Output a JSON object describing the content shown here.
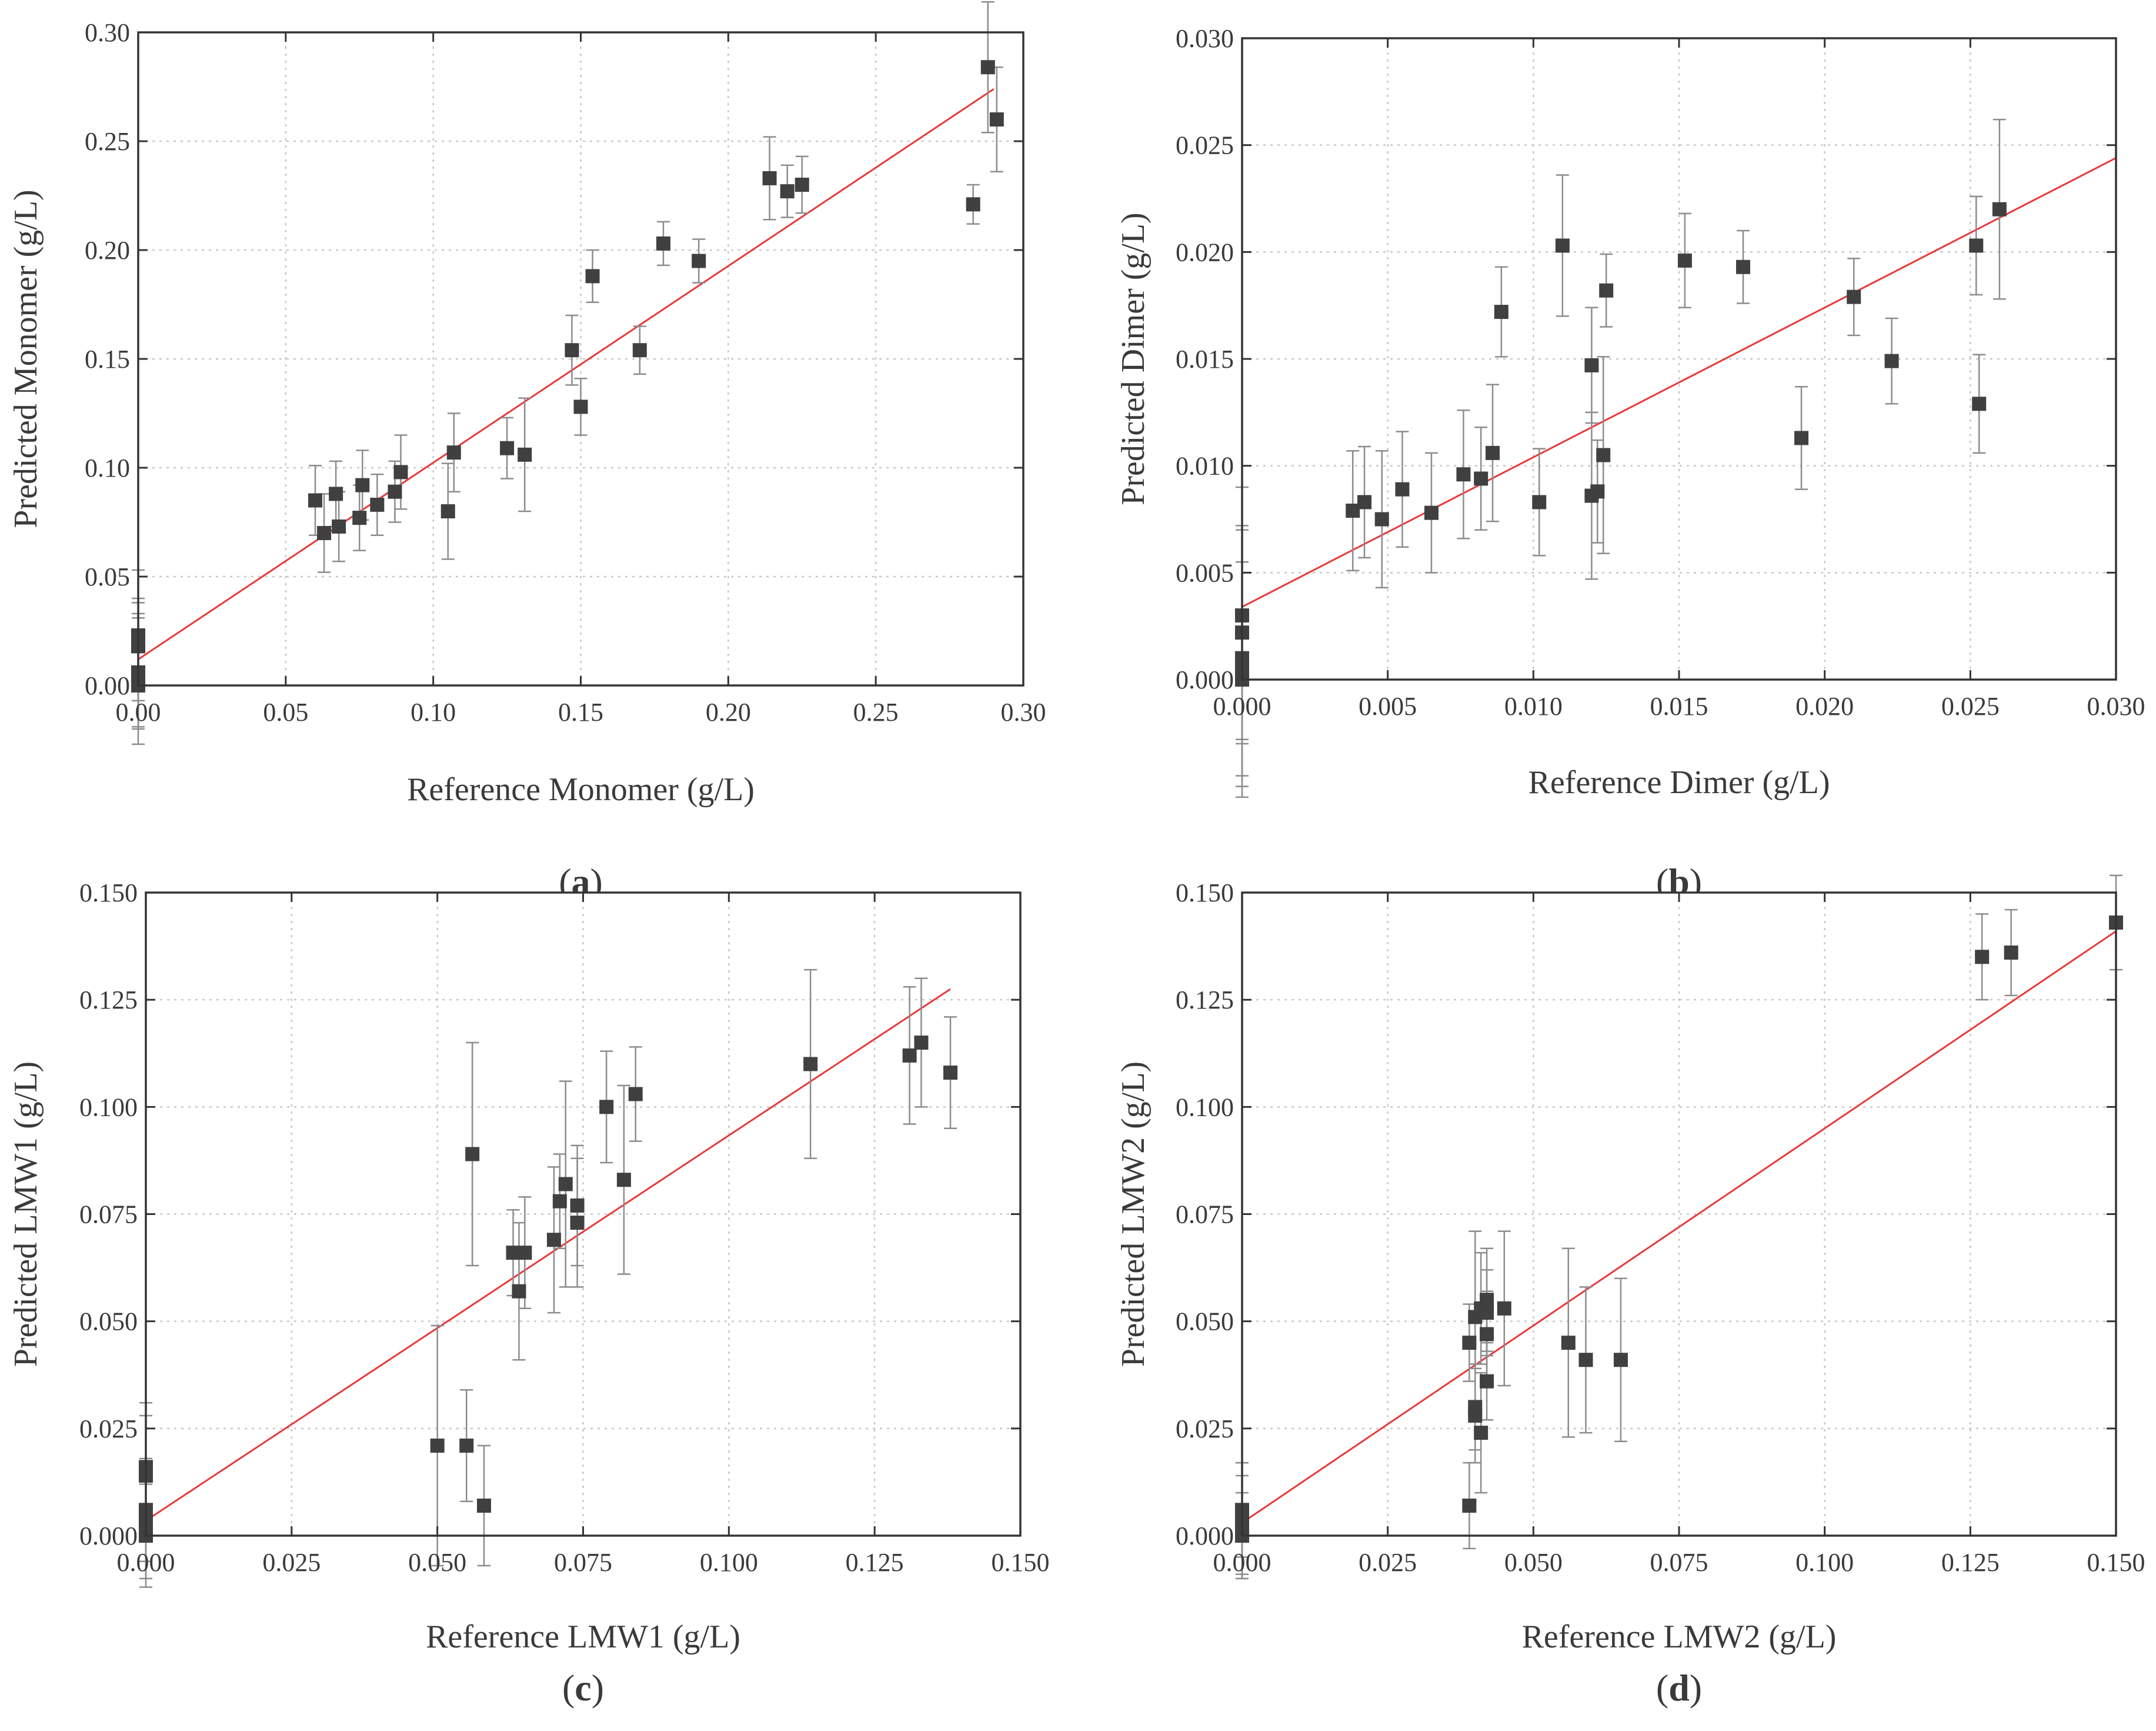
{
  "figure": {
    "panels": [
      "a",
      "b",
      "c",
      "d"
    ]
  },
  "chart_data": [
    {
      "id": "a",
      "type": "scatter",
      "caption_letter": "a",
      "xlabel": "Reference Monomer (g/L)",
      "ylabel": "Predicted Monomer (g/L)",
      "xlim": [
        0,
        0.3
      ],
      "ylim": [
        0,
        0.3
      ],
      "xticks": [
        0,
        0.05,
        0.1,
        0.15,
        0.2,
        0.25,
        0.3
      ],
      "xtick_labels": [
        "0.00",
        "0.05",
        "0.10",
        "0.15",
        "0.20",
        "0.25",
        "0.30"
      ],
      "yticks": [
        0,
        0.05,
        0.1,
        0.15,
        0.2,
        0.25,
        0.3
      ],
      "ytick_labels": [
        "0.00",
        "0.05",
        "0.10",
        "0.15",
        "0.20",
        "0.25",
        "0.30"
      ],
      "fit_line": [
        [
          0,
          0.012
        ],
        [
          0.29,
          0.274
        ]
      ],
      "points": [
        {
          "x": 0,
          "y": 0.0,
          "err": 0.02
        },
        {
          "x": 0,
          "y": 0.003,
          "err": 0.03
        },
        {
          "x": 0,
          "y": 0.006,
          "err": 0.025
        },
        {
          "x": 0,
          "y": 0.018,
          "err": 0.02
        },
        {
          "x": 0,
          "y": 0.02,
          "err": 0.02
        },
        {
          "x": 0,
          "y": 0.023,
          "err": 0.03
        },
        {
          "x": 0.06,
          "y": 0.085,
          "err": 0.016
        },
        {
          "x": 0.063,
          "y": 0.07,
          "err": 0.018
        },
        {
          "x": 0.067,
          "y": 0.088,
          "err": 0.015
        },
        {
          "x": 0.068,
          "y": 0.073,
          "err": 0.016
        },
        {
          "x": 0.075,
          "y": 0.077,
          "err": 0.015
        },
        {
          "x": 0.076,
          "y": 0.092,
          "err": 0.016
        },
        {
          "x": 0.081,
          "y": 0.083,
          "err": 0.014
        },
        {
          "x": 0.087,
          "y": 0.089,
          "err": 0.014
        },
        {
          "x": 0.089,
          "y": 0.098,
          "err": 0.017
        },
        {
          "x": 0.105,
          "y": 0.08,
          "err": 0.022
        },
        {
          "x": 0.107,
          "y": 0.107,
          "err": 0.018
        },
        {
          "x": 0.125,
          "y": 0.109,
          "err": 0.014
        },
        {
          "x": 0.131,
          "y": 0.106,
          "err": 0.026
        },
        {
          "x": 0.147,
          "y": 0.154,
          "err": 0.016
        },
        {
          "x": 0.15,
          "y": 0.128,
          "err": 0.013
        },
        {
          "x": 0.154,
          "y": 0.188,
          "err": 0.012
        },
        {
          "x": 0.17,
          "y": 0.154,
          "err": 0.011
        },
        {
          "x": 0.178,
          "y": 0.203,
          "err": 0.01
        },
        {
          "x": 0.19,
          "y": 0.195,
          "err": 0.01
        },
        {
          "x": 0.214,
          "y": 0.233,
          "err": 0.019
        },
        {
          "x": 0.22,
          "y": 0.227,
          "err": 0.012
        },
        {
          "x": 0.225,
          "y": 0.23,
          "err": 0.013
        },
        {
          "x": 0.283,
          "y": 0.221,
          "err": 0.009
        },
        {
          "x": 0.288,
          "y": 0.284,
          "err": 0.03
        },
        {
          "x": 0.291,
          "y": 0.26,
          "err": 0.024
        }
      ]
    },
    {
      "id": "b",
      "type": "scatter",
      "caption_letter": "b",
      "xlabel": "Reference Dimer (g/L)",
      "ylabel": "Predicted Dimer (g/L)",
      "xlim": [
        0,
        0.03
      ],
      "ylim": [
        0,
        0.03
      ],
      "xticks": [
        0,
        0.005,
        0.01,
        0.015,
        0.02,
        0.025,
        0.03
      ],
      "xtick_labels": [
        "0.000",
        "0.005",
        "0.010",
        "0.015",
        "0.020",
        "0.025",
        "0.030"
      ],
      "yticks": [
        0,
        0.005,
        0.01,
        0.015,
        0.02,
        0.025,
        0.03
      ],
      "ytick_labels": [
        "0.000",
        "0.005",
        "0.010",
        "0.015",
        "0.020",
        "0.025",
        "0.030"
      ],
      "fit_line": [
        [
          0,
          0.0034
        ],
        [
          0.03,
          0.0244
        ]
      ],
      "points": [
        {
          "x": 0,
          "y": 0.0,
          "err": 0.0055
        },
        {
          "x": 0,
          "y": 0.0005,
          "err": 0.005
        },
        {
          "x": 0,
          "y": 0.001,
          "err": 0.006
        },
        {
          "x": 0,
          "y": 0.0022,
          "err": 0.005
        },
        {
          "x": 0,
          "y": 0.003,
          "err": 0.006
        },
        {
          "x": 0.0038,
          "y": 0.0079,
          "err": 0.0028
        },
        {
          "x": 0.0042,
          "y": 0.0083,
          "err": 0.0026
        },
        {
          "x": 0.0048,
          "y": 0.0075,
          "err": 0.0032
        },
        {
          "x": 0.0055,
          "y": 0.0089,
          "err": 0.0027
        },
        {
          "x": 0.0065,
          "y": 0.0078,
          "err": 0.0028
        },
        {
          "x": 0.0076,
          "y": 0.0096,
          "err": 0.003
        },
        {
          "x": 0.0082,
          "y": 0.0094,
          "err": 0.0024
        },
        {
          "x": 0.0086,
          "y": 0.0106,
          "err": 0.0032
        },
        {
          "x": 0.0089,
          "y": 0.0172,
          "err": 0.0021
        },
        {
          "x": 0.0102,
          "y": 0.0083,
          "err": 0.0025
        },
        {
          "x": 0.011,
          "y": 0.0203,
          "err": 0.0033
        },
        {
          "x": 0.012,
          "y": 0.0147,
          "err": 0.0027
        },
        {
          "x": 0.012,
          "y": 0.0086,
          "err": 0.0039
        },
        {
          "x": 0.0122,
          "y": 0.0088,
          "err": 0.0024
        },
        {
          "x": 0.0124,
          "y": 0.0105,
          "err": 0.0046
        },
        {
          "x": 0.0125,
          "y": 0.0182,
          "err": 0.0017
        },
        {
          "x": 0.0152,
          "y": 0.0196,
          "err": 0.0022
        },
        {
          "x": 0.0172,
          "y": 0.0193,
          "err": 0.0017
        },
        {
          "x": 0.0192,
          "y": 0.0113,
          "err": 0.0024
        },
        {
          "x": 0.021,
          "y": 0.0179,
          "err": 0.0018
        },
        {
          "x": 0.0223,
          "y": 0.0149,
          "err": 0.002
        },
        {
          "x": 0.0252,
          "y": 0.0203,
          "err": 0.0023
        },
        {
          "x": 0.0253,
          "y": 0.0129,
          "err": 0.0023
        },
        {
          "x": 0.026,
          "y": 0.022,
          "err": 0.0042
        }
      ]
    },
    {
      "id": "c",
      "type": "scatter",
      "caption_letter": "c",
      "xlabel": "Reference LMW1 (g/L)",
      "ylabel": "Predicted LMW1 (g/L)",
      "xlim": [
        0,
        0.15
      ],
      "ylim": [
        0,
        0.15
      ],
      "xticks": [
        0,
        0.025,
        0.05,
        0.075,
        0.1,
        0.125,
        0.15
      ],
      "xtick_labels": [
        "0.000",
        "0.025",
        "0.050",
        "0.075",
        "0.100",
        "0.125",
        "0.150"
      ],
      "yticks": [
        0,
        0.025,
        0.05,
        0.075,
        0.1,
        0.125,
        0.15
      ],
      "ytick_labels": [
        "0.000",
        "0.025",
        "0.050",
        "0.075",
        "0.100",
        "0.125",
        "0.150"
      ],
      "fit_line": [
        [
          0,
          0.0035
        ],
        [
          0.138,
          0.1275
        ]
      ],
      "points": [
        {
          "x": 0,
          "y": 0.0,
          "err": 0.012
        },
        {
          "x": 0,
          "y": 0.003,
          "err": 0.013
        },
        {
          "x": 0,
          "y": 0.006,
          "err": 0.012
        },
        {
          "x": 0,
          "y": 0.014,
          "err": 0.014
        },
        {
          "x": 0,
          "y": 0.016,
          "err": 0.015
        },
        {
          "x": 0.05,
          "y": 0.021,
          "err": 0.028
        },
        {
          "x": 0.055,
          "y": 0.021,
          "err": 0.013
        },
        {
          "x": 0.056,
          "y": 0.089,
          "err": 0.026
        },
        {
          "x": 0.058,
          "y": 0.007,
          "err": 0.014
        },
        {
          "x": 0.063,
          "y": 0.066,
          "err": 0.01
        },
        {
          "x": 0.064,
          "y": 0.057,
          "err": 0.016
        },
        {
          "x": 0.065,
          "y": 0.066,
          "err": 0.013
        },
        {
          "x": 0.07,
          "y": 0.069,
          "err": 0.017
        },
        {
          "x": 0.071,
          "y": 0.078,
          "err": 0.011
        },
        {
          "x": 0.072,
          "y": 0.082,
          "err": 0.024
        },
        {
          "x": 0.074,
          "y": 0.073,
          "err": 0.015
        },
        {
          "x": 0.074,
          "y": 0.077,
          "err": 0.014
        },
        {
          "x": 0.079,
          "y": 0.1,
          "err": 0.013
        },
        {
          "x": 0.082,
          "y": 0.083,
          "err": 0.022
        },
        {
          "x": 0.084,
          "y": 0.103,
          "err": 0.011
        },
        {
          "x": 0.114,
          "y": 0.11,
          "err": 0.022
        },
        {
          "x": 0.131,
          "y": 0.112,
          "err": 0.016
        },
        {
          "x": 0.133,
          "y": 0.115,
          "err": 0.015
        },
        {
          "x": 0.138,
          "y": 0.108,
          "err": 0.013
        }
      ]
    },
    {
      "id": "d",
      "type": "scatter",
      "caption_letter": "d",
      "xlabel": "Reference LMW2 (g/L)",
      "ylabel": "Predicted LMW2 (g/L)",
      "xlim": [
        0,
        0.15
      ],
      "ylim": [
        0,
        0.15
      ],
      "xticks": [
        0,
        0.025,
        0.05,
        0.075,
        0.1,
        0.125,
        0.15
      ],
      "xtick_labels": [
        "0.000",
        "0.025",
        "0.050",
        "0.075",
        "0.100",
        "0.125",
        "0.150"
      ],
      "yticks": [
        0,
        0.025,
        0.05,
        0.075,
        0.1,
        0.125,
        0.15
      ],
      "ytick_labels": [
        "0.000",
        "0.025",
        "0.050",
        "0.075",
        "0.100",
        "0.125",
        "0.150"
      ],
      "fit_line": [
        [
          0,
          0.003
        ],
        [
          0.15,
          0.141
        ]
      ],
      "points": [
        {
          "x": 0,
          "y": 0.0,
          "err": 0.01
        },
        {
          "x": 0,
          "y": 0.002,
          "err": 0.012
        },
        {
          "x": 0,
          "y": 0.004,
          "err": 0.013
        },
        {
          "x": 0,
          "y": 0.006,
          "err": 0.011
        },
        {
          "x": 0.039,
          "y": 0.045,
          "err": 0.009
        },
        {
          "x": 0.039,
          "y": 0.007,
          "err": 0.01
        },
        {
          "x": 0.04,
          "y": 0.03,
          "err": 0.01
        },
        {
          "x": 0.04,
          "y": 0.028,
          "err": 0.011
        },
        {
          "x": 0.04,
          "y": 0.051,
          "err": 0.02
        },
        {
          "x": 0.041,
          "y": 0.024,
          "err": 0.014
        },
        {
          "x": 0.041,
          "y": 0.053,
          "err": 0.013
        },
        {
          "x": 0.042,
          "y": 0.047,
          "err": 0.01
        },
        {
          "x": 0.042,
          "y": 0.036,
          "err": 0.009
        },
        {
          "x": 0.042,
          "y": 0.052,
          "err": 0.01
        },
        {
          "x": 0.042,
          "y": 0.055,
          "err": 0.012
        },
        {
          "x": 0.045,
          "y": 0.053,
          "err": 0.018
        },
        {
          "x": 0.056,
          "y": 0.045,
          "err": 0.022
        },
        {
          "x": 0.059,
          "y": 0.041,
          "err": 0.017
        },
        {
          "x": 0.065,
          "y": 0.041,
          "err": 0.019
        },
        {
          "x": 0.127,
          "y": 0.135,
          "err": 0.01
        },
        {
          "x": 0.132,
          "y": 0.136,
          "err": 0.01
        },
        {
          "x": 0.15,
          "y": 0.143,
          "err": 0.011
        }
      ]
    }
  ],
  "colors": {
    "axis": "#333333",
    "grid": "#c8c8c8",
    "marker": "#404040",
    "errorbar": "#8c8c8c",
    "fit_line": "#e8393a",
    "text": "#3a3a3a"
  }
}
